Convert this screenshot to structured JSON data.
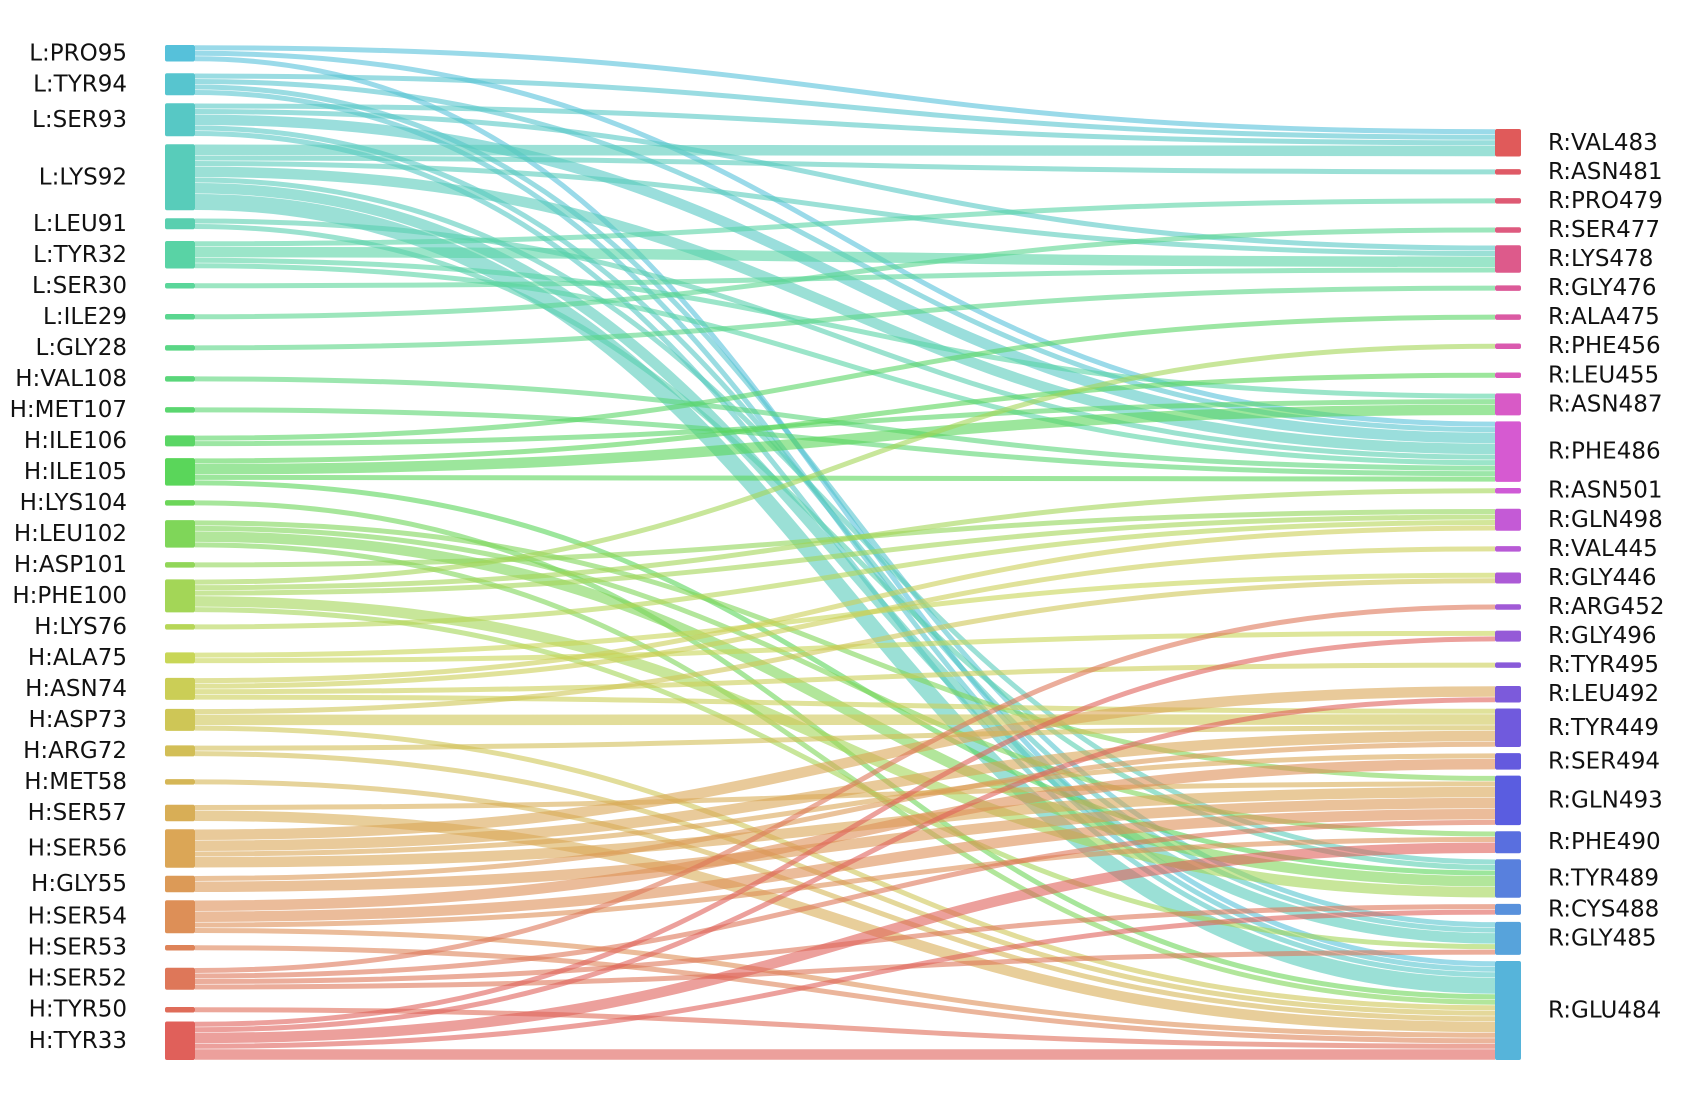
{
  "chart_data": {
    "type": "sankey",
    "left_nodes": [
      "L:PRO95",
      "L:TYR94",
      "L:SER93",
      "L:LYS92",
      "L:LEU91",
      "L:TYR32",
      "L:SER30",
      "L:ILE29",
      "L:GLY28",
      "H:VAL108",
      "H:MET107",
      "H:ILE106",
      "H:ILE105",
      "H:LYS104",
      "H:LEU102",
      "H:ASP101",
      "H:PHE100",
      "H:LYS76",
      "H:ALA75",
      "H:ASN74",
      "H:ASP73",
      "H:ARG72",
      "H:MET58",
      "H:SER57",
      "H:SER56",
      "H:GLY55",
      "H:SER54",
      "H:SER53",
      "H:SER52",
      "H:TYR50",
      "H:TYR33"
    ],
    "right_nodes": [
      "R:VAL483",
      "R:ASN481",
      "R:PRO479",
      "R:SER477",
      "R:LYS478",
      "R:GLY476",
      "R:ALA475",
      "R:PHE456",
      "R:LEU455",
      "R:ASN487",
      "R:PHE486",
      "R:ASN501",
      "R:GLN498",
      "R:VAL445",
      "R:GLY446",
      "R:ARG452",
      "R:GLY496",
      "R:TYR495",
      "R:LEU492",
      "R:TYR449",
      "R:SER494",
      "R:GLN493",
      "R:PHE490",
      "R:TYR489",
      "R:CYS488",
      "R:GLY485",
      "R:GLU484"
    ],
    "left_color_scale": [
      "#56c1da",
      "#5ad69a",
      "#5ad65a",
      "#c8d656",
      "#dba656",
      "#e0605a"
    ],
    "right_color_scale": [
      "#e05a5a",
      "#dc5a9a",
      "#d65ad6",
      "#9a5ad6",
      "#5a5ae0",
      "#56b4da"
    ],
    "links": [
      [
        "L:PRO95",
        "R:VAL483",
        1
      ],
      [
        "L:PRO95",
        "R:PHE486",
        1
      ],
      [
        "L:PRO95",
        "R:GLU484",
        1
      ],
      [
        "L:TYR94",
        "R:VAL483",
        1
      ],
      [
        "L:TYR94",
        "R:PHE486",
        1
      ],
      [
        "L:TYR94",
        "R:GLY485",
        1
      ],
      [
        "L:TYR94",
        "R:GLU484",
        1
      ],
      [
        "L:SER93",
        "R:VAL483",
        1
      ],
      [
        "L:SER93",
        "R:LYS478",
        1
      ],
      [
        "L:SER93",
        "R:PHE486",
        2
      ],
      [
        "L:SER93",
        "R:GLY485",
        1
      ],
      [
        "L:SER93",
        "R:GLU484",
        1
      ],
      [
        "L:LYS92",
        "R:VAL483",
        2
      ],
      [
        "L:LYS92",
        "R:ASN481",
        1
      ],
      [
        "L:LYS92",
        "R:LYS478",
        1
      ],
      [
        "L:LYS92",
        "R:PHE486",
        2
      ],
      [
        "L:LYS92",
        "R:TYR489",
        1
      ],
      [
        "L:LYS92",
        "R:GLY485",
        2
      ],
      [
        "L:LYS92",
        "R:GLU484",
        3
      ],
      [
        "L:LEU91",
        "R:PHE486",
        1
      ],
      [
        "L:LEU91",
        "R:TYR489",
        1
      ],
      [
        "L:TYR32",
        "R:PRO479",
        1
      ],
      [
        "L:TYR32",
        "R:LYS478",
        2
      ],
      [
        "L:TYR32",
        "R:ASN487",
        1
      ],
      [
        "L:TYR32",
        "R:PHE486",
        1
      ],
      [
        "L:SER30",
        "R:LYS478",
        1
      ],
      [
        "L:ILE29",
        "R:SER477",
        1
      ],
      [
        "L:GLY28",
        "R:GLY476",
        1
      ],
      [
        "H:VAL108",
        "R:PHE486",
        1
      ],
      [
        "H:MET107",
        "R:PHE486",
        1
      ],
      [
        "H:ILE106",
        "R:ALA475",
        1
      ],
      [
        "H:ILE106",
        "R:ASN487",
        1
      ],
      [
        "H:ILE105",
        "R:LEU455",
        1
      ],
      [
        "H:ILE105",
        "R:ASN487",
        2
      ],
      [
        "H:ILE105",
        "R:PHE486",
        1
      ],
      [
        "H:ILE105",
        "R:TYR489",
        1
      ],
      [
        "H:LYS104",
        "R:GLU484",
        1
      ],
      [
        "H:LEU102",
        "R:TYR489",
        2
      ],
      [
        "H:LEU102",
        "R:GLN493",
        1
      ],
      [
        "H:LEU102",
        "R:PHE490",
        1
      ],
      [
        "H:LEU102",
        "R:GLU484",
        1
      ],
      [
        "H:ASP101",
        "R:GLN498",
        1
      ],
      [
        "H:PHE100",
        "R:PHE456",
        1
      ],
      [
        "H:PHE100",
        "R:ASN501",
        1
      ],
      [
        "H:PHE100",
        "R:GLN498",
        1
      ],
      [
        "H:PHE100",
        "R:TYR489",
        2
      ],
      [
        "H:PHE100",
        "R:GLY485",
        1
      ],
      [
        "H:LYS76",
        "R:GLN498",
        1
      ],
      [
        "H:ALA75",
        "R:GLY446",
        1
      ],
      [
        "H:ALA75",
        "R:GLY496",
        1
      ],
      [
        "H:ASN74",
        "R:GLN498",
        1
      ],
      [
        "H:ASN74",
        "R:VAL445",
        1
      ],
      [
        "H:ASN74",
        "R:TYR495",
        1
      ],
      [
        "H:ASN74",
        "R:TYR449",
        1
      ],
      [
        "H:ASP73",
        "R:GLY446",
        1
      ],
      [
        "H:ASP73",
        "R:TYR449",
        2
      ],
      [
        "H:ASP73",
        "R:GLU484",
        1
      ],
      [
        "H:ARG72",
        "R:TYR449",
        1
      ],
      [
        "H:ARG72",
        "R:GLU484",
        1
      ],
      [
        "H:MET58",
        "R:GLU484",
        1
      ],
      [
        "H:SER57",
        "R:GLN493",
        1
      ],
      [
        "H:SER57",
        "R:GLU484",
        2
      ],
      [
        "H:SER56",
        "R:LEU492",
        2
      ],
      [
        "H:SER56",
        "R:TYR449",
        2
      ],
      [
        "H:SER56",
        "R:SER494",
        1
      ],
      [
        "H:SER56",
        "R:GLN493",
        2
      ],
      [
        "H:GLY55",
        "R:TYR449",
        1
      ],
      [
        "H:GLY55",
        "R:GLN493",
        2
      ],
      [
        "H:SER54",
        "R:SER494",
        2
      ],
      [
        "H:SER54",
        "R:GLN493",
        2
      ],
      [
        "H:SER54",
        "R:PHE490",
        1
      ],
      [
        "H:SER54",
        "R:GLU484",
        1
      ],
      [
        "H:SER53",
        "R:GLU484",
        1
      ],
      [
        "H:SER52",
        "R:ARG452",
        1
      ],
      [
        "H:SER52",
        "R:GLN493",
        1
      ],
      [
        "H:SER52",
        "R:CYS488",
        1
      ],
      [
        "H:SER52",
        "R:GLY485",
        1
      ],
      [
        "H:TYR50",
        "R:GLU484",
        1
      ],
      [
        "H:TYR33",
        "R:GLY496",
        1
      ],
      [
        "H:TYR33",
        "R:LEU492",
        1
      ],
      [
        "H:TYR33",
        "R:PHE490",
        2
      ],
      [
        "H:TYR33",
        "R:CYS488",
        1
      ],
      [
        "H:TYR33",
        "R:GLU484",
        2
      ]
    ]
  }
}
